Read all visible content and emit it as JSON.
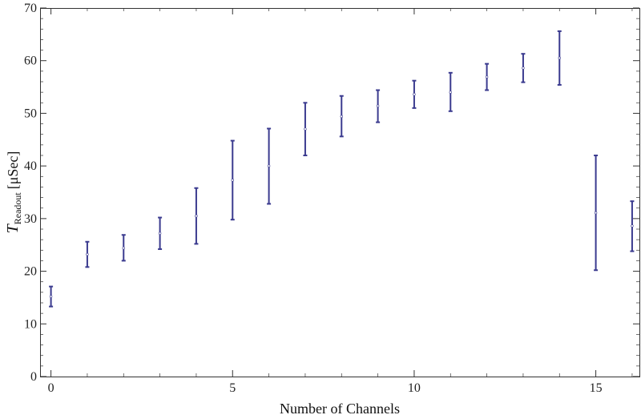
{
  "chart_data": {
    "type": "scatter",
    "style": "error-bars",
    "xlabel": "Number of Channels",
    "ylabel": {
      "symbol": "T",
      "subscript": "Readout",
      "units": "[μSec]"
    },
    "xlim": [
      -0.3,
      16.2
    ],
    "ylim": [
      0,
      70
    ],
    "x_ticks": [
      0,
      5,
      10,
      15
    ],
    "y_ticks": [
      0,
      10,
      20,
      30,
      40,
      50,
      60,
      70
    ],
    "grid": false,
    "color": "#3b3b8f",
    "series": [
      {
        "x": [
          0,
          1,
          2,
          3,
          4,
          5,
          6,
          7,
          8,
          9,
          10,
          11,
          12,
          13,
          14,
          15,
          16
        ],
        "y": [
          15.2,
          23.2,
          24.4,
          27.2,
          30.5,
          37.3,
          40.0,
          47.0,
          49.4,
          51.4,
          53.6,
          54.0,
          56.9,
          58.6,
          60.5,
          31.1,
          28.6
        ],
        "ylow": [
          13.3,
          20.8,
          22.0,
          24.2,
          25.2,
          29.8,
          32.8,
          42.0,
          45.6,
          48.3,
          51.0,
          50.4,
          54.4,
          55.9,
          55.4,
          20.2,
          23.8
        ],
        "yhigh": [
          17.1,
          25.6,
          26.9,
          30.2,
          35.8,
          44.8,
          47.1,
          52.0,
          53.3,
          54.4,
          56.2,
          57.7,
          59.4,
          61.3,
          65.6,
          42.0,
          33.3
        ]
      }
    ]
  }
}
